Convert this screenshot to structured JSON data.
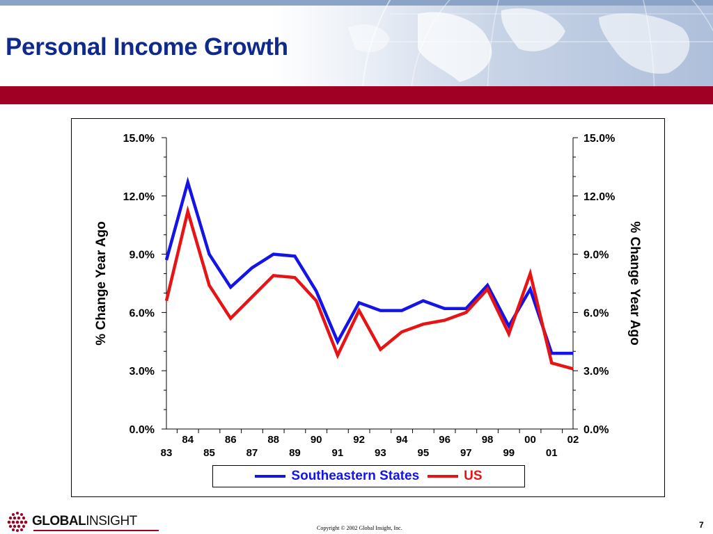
{
  "slide": {
    "title": "Personal Income Growth",
    "copyright": "Copyright © 2002 Global Insight, Inc.",
    "page_number": "7",
    "logo": {
      "bold_text": "GLOBAL",
      "light_text": "INSIGHT"
    },
    "colors": {
      "title": "#0f2a8c",
      "band": "#a10025",
      "strip": "#8ca3c8"
    }
  },
  "chart_data": {
    "type": "line",
    "title": "",
    "ylabel": "% Change Year Ago",
    "ylabel_right": "% Change Year Ago",
    "xlabel": "",
    "ylim": [
      0,
      15
    ],
    "yticks": [
      0,
      3,
      6,
      9,
      12,
      15
    ],
    "ytick_labels": [
      "0.0%",
      "3.0%",
      "6.0%",
      "9.0%",
      "12.0%",
      "15.0%"
    ],
    "x_labels": [
      "83",
      "84",
      "85",
      "86",
      "87",
      "88",
      "89",
      "90",
      "91",
      "92",
      "93",
      "94",
      "95",
      "96",
      "97",
      "98",
      "99",
      "00",
      "01",
      "02"
    ],
    "grid": false,
    "legend_position": "bottom",
    "series": [
      {
        "name": "Southeastern States",
        "color": "#1414e6",
        "values": [
          8.7,
          12.7,
          9.0,
          7.3,
          8.3,
          9.0,
          8.9,
          7.1,
          4.5,
          6.5,
          6.1,
          6.1,
          6.6,
          6.2,
          6.2,
          7.4,
          5.3,
          7.2,
          3.9,
          3.9
        ]
      },
      {
        "name": "US",
        "color": "#e61414",
        "values": [
          6.6,
          11.2,
          7.4,
          5.7,
          6.8,
          7.9,
          7.8,
          6.6,
          3.8,
          6.1,
          4.1,
          5.0,
          5.4,
          5.6,
          6.0,
          7.2,
          4.9,
          8.0,
          3.4,
          3.1
        ]
      }
    ]
  }
}
